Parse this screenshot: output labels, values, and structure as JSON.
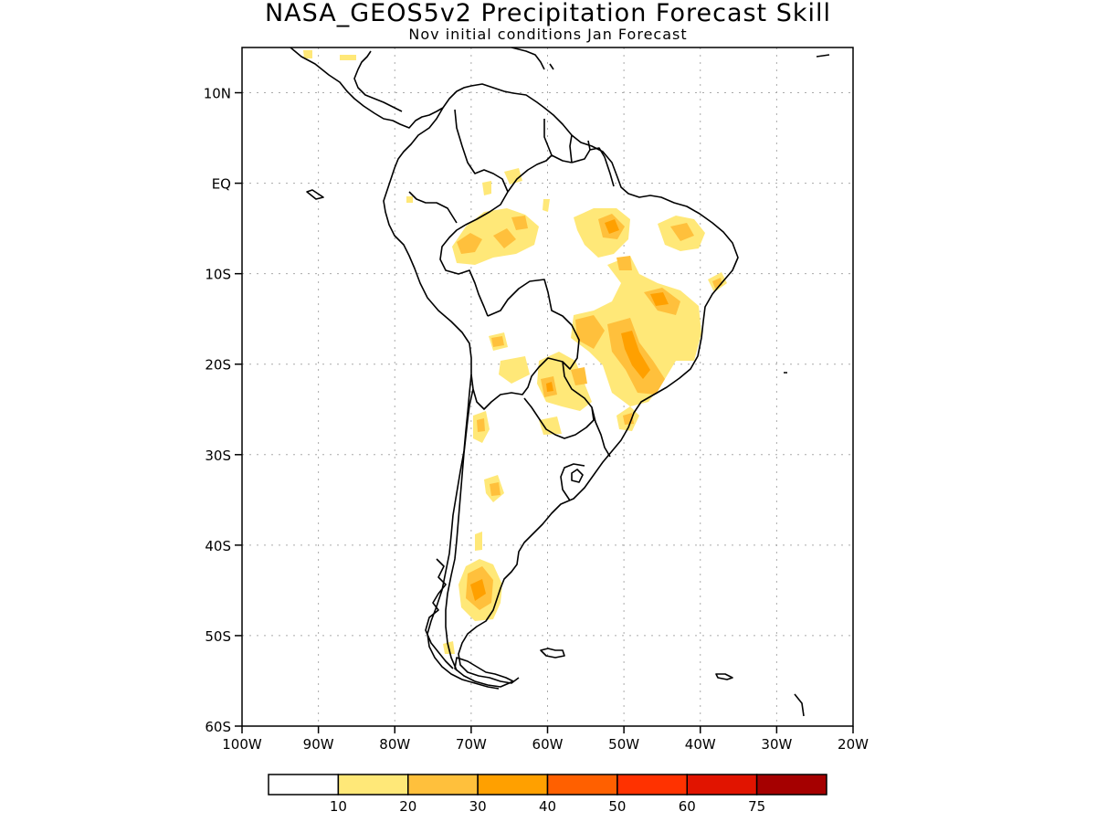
{
  "title": "NASA_GEOS5v2 Precipitation Forecast Skill",
  "subtitle": "Nov initial conditions  Jan Forecast",
  "map": {
    "lon_range": [
      -100,
      -20
    ],
    "lat_range": [
      -60,
      15
    ],
    "lon_ticks": [
      {
        "value": -100,
        "label": "100W"
      },
      {
        "value": -90,
        "label": "90W"
      },
      {
        "value": -80,
        "label": "80W"
      },
      {
        "value": -70,
        "label": "70W"
      },
      {
        "value": -60,
        "label": "60W"
      },
      {
        "value": -50,
        "label": "50W"
      },
      {
        "value": -40,
        "label": "40W"
      },
      {
        "value": -30,
        "label": "30W"
      },
      {
        "value": -20,
        "label": "20W"
      }
    ],
    "lat_ticks": [
      {
        "value": 10,
        "label": "10N"
      },
      {
        "value": 0,
        "label": "EQ"
      },
      {
        "value": -10,
        "label": "10S"
      },
      {
        "value": -20,
        "label": "20S"
      },
      {
        "value": -30,
        "label": "30S"
      },
      {
        "value": -40,
        "label": "40S"
      },
      {
        "value": -50,
        "label": "50S"
      },
      {
        "value": -60,
        "label": "60S"
      }
    ],
    "grid": true
  },
  "colorbar": {
    "colors": [
      "#ffffff",
      "#ffe878",
      "#ffc03c",
      "#ffa000",
      "#ff6000",
      "#ff3200",
      "#e11400",
      "#a50000"
    ],
    "labels": [
      "10",
      "20",
      "30",
      "40",
      "50",
      "60",
      "75"
    ]
  }
}
